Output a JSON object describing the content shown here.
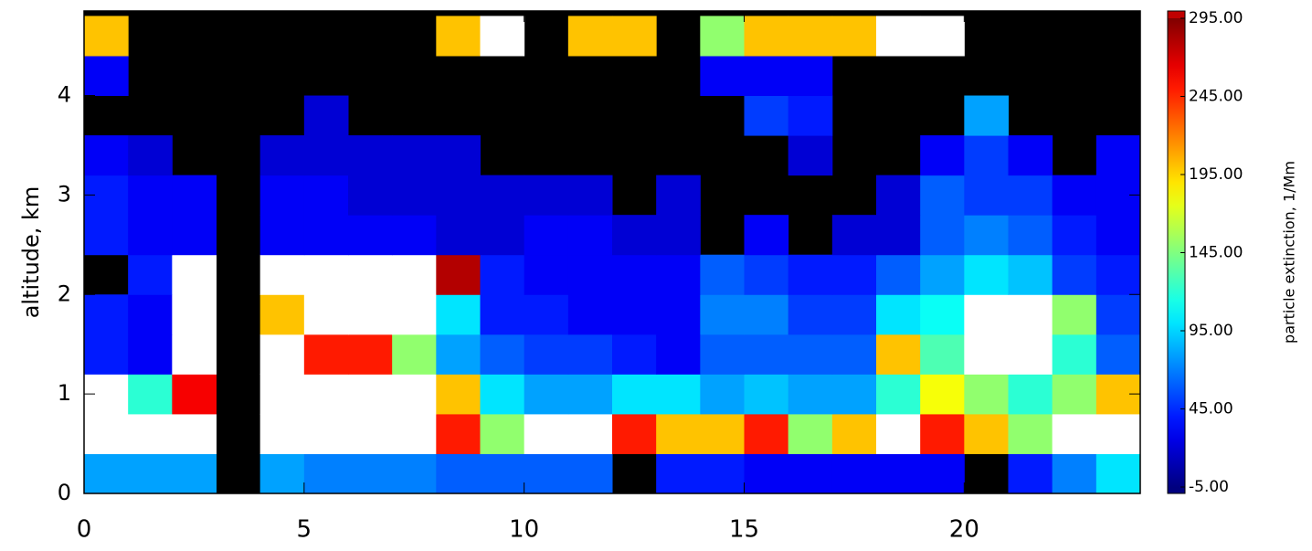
{
  "chart_data": {
    "type": "heatmap",
    "y_label": "altitude, km",
    "colorbar_label": "particle extinction, 1/Mm",
    "x": [
      0,
      1,
      2,
      3,
      4,
      5,
      6,
      7,
      8,
      9,
      10,
      11,
      12,
      13,
      14,
      15,
      16,
      17,
      18,
      19,
      20,
      21,
      22,
      23,
      24
    ],
    "y": [
      0,
      0.4,
      0.8,
      1.2,
      1.6,
      2.0,
      2.4,
      2.8,
      3.2,
      3.6,
      4.0,
      4.4,
      4.8
    ],
    "values": [
      [
        80,
        80,
        80,
        null,
        80,
        70,
        70,
        70,
        60,
        60,
        60,
        60,
        null,
        40,
        40,
        30,
        30,
        30,
        30,
        30,
        null,
        40,
        70,
        100
      ],
      [
        350,
        350,
        350,
        null,
        350,
        350,
        350,
        350,
        250,
        150,
        350,
        350,
        250,
        200,
        200,
        250,
        150,
        200,
        350,
        250,
        200,
        150,
        350,
        300
      ],
      [
        300,
        120,
        260,
        null,
        350,
        350,
        350,
        300,
        200,
        100,
        80,
        80,
        100,
        100,
        80,
        90,
        80,
        80,
        120,
        180,
        150,
        120,
        150,
        200
      ],
      [
        40,
        30,
        350,
        null,
        300,
        250,
        250,
        150,
        80,
        60,
        50,
        50,
        40,
        30,
        60,
        60,
        60,
        60,
        200,
        130,
        350,
        350,
        120,
        60
      ],
      [
        40,
        30,
        350,
        null,
        200,
        350,
        350,
        350,
        100,
        40,
        40,
        30,
        30,
        30,
        70,
        70,
        50,
        50,
        100,
        110,
        350,
        350,
        150,
        50
      ],
      [
        null,
        40,
        350,
        null,
        350,
        350,
        350,
        350,
        280,
        40,
        30,
        30,
        30,
        30,
        60,
        50,
        40,
        40,
        60,
        80,
        100,
        90,
        50,
        40
      ],
      [
        40,
        30,
        30,
        null,
        30,
        30,
        30,
        30,
        20,
        20,
        30,
        30,
        20,
        20,
        null,
        30,
        null,
        20,
        20,
        60,
        70,
        60,
        40,
        30
      ],
      [
        40,
        30,
        30,
        null,
        30,
        30,
        20,
        20,
        20,
        20,
        20,
        20,
        null,
        20,
        null,
        null,
        null,
        null,
        20,
        60,
        50,
        50,
        30,
        30
      ],
      [
        30,
        20,
        null,
        null,
        20,
        20,
        20,
        20,
        20,
        null,
        null,
        null,
        null,
        null,
        null,
        null,
        20,
        null,
        null,
        30,
        50,
        30,
        null,
        30
      ],
      [
        null,
        null,
        null,
        null,
        null,
        20,
        null,
        null,
        null,
        null,
        null,
        null,
        null,
        null,
        null,
        50,
        40,
        null,
        null,
        null,
        80,
        null,
        null,
        null
      ],
      [
        30,
        null,
        null,
        null,
        null,
        null,
        null,
        null,
        null,
        null,
        null,
        null,
        null,
        null,
        30,
        30,
        30,
        null,
        null,
        null,
        null,
        null,
        null,
        null
      ],
      [
        200,
        null,
        null,
        null,
        null,
        null,
        null,
        null,
        200,
        350,
        null,
        200,
        200,
        null,
        150,
        200,
        200,
        200,
        300,
        300,
        null,
        null,
        null,
        null
      ]
    ],
    "xlim": [
      0,
      24
    ],
    "xticks": [
      0,
      5,
      10,
      15,
      20
    ],
    "ylim": [
      0,
      4.85
    ],
    "yticks": [
      0,
      1,
      2,
      3,
      4
    ],
    "clim": [
      -5,
      295
    ],
    "cticks": [
      {
        "value": -5,
        "label": "-5.00"
      },
      {
        "value": 45,
        "label": "45.00"
      },
      {
        "value": 95,
        "label": "95.00"
      },
      {
        "value": 145,
        "label": "145.00"
      },
      {
        "value": 195,
        "label": "195.00"
      },
      {
        "value": 245,
        "label": "245.00"
      },
      {
        "value": 295,
        "label": "295.00"
      }
    ],
    "colormap": "jet",
    "over_color": "#ffffff",
    "nodata_color": "#000000"
  }
}
